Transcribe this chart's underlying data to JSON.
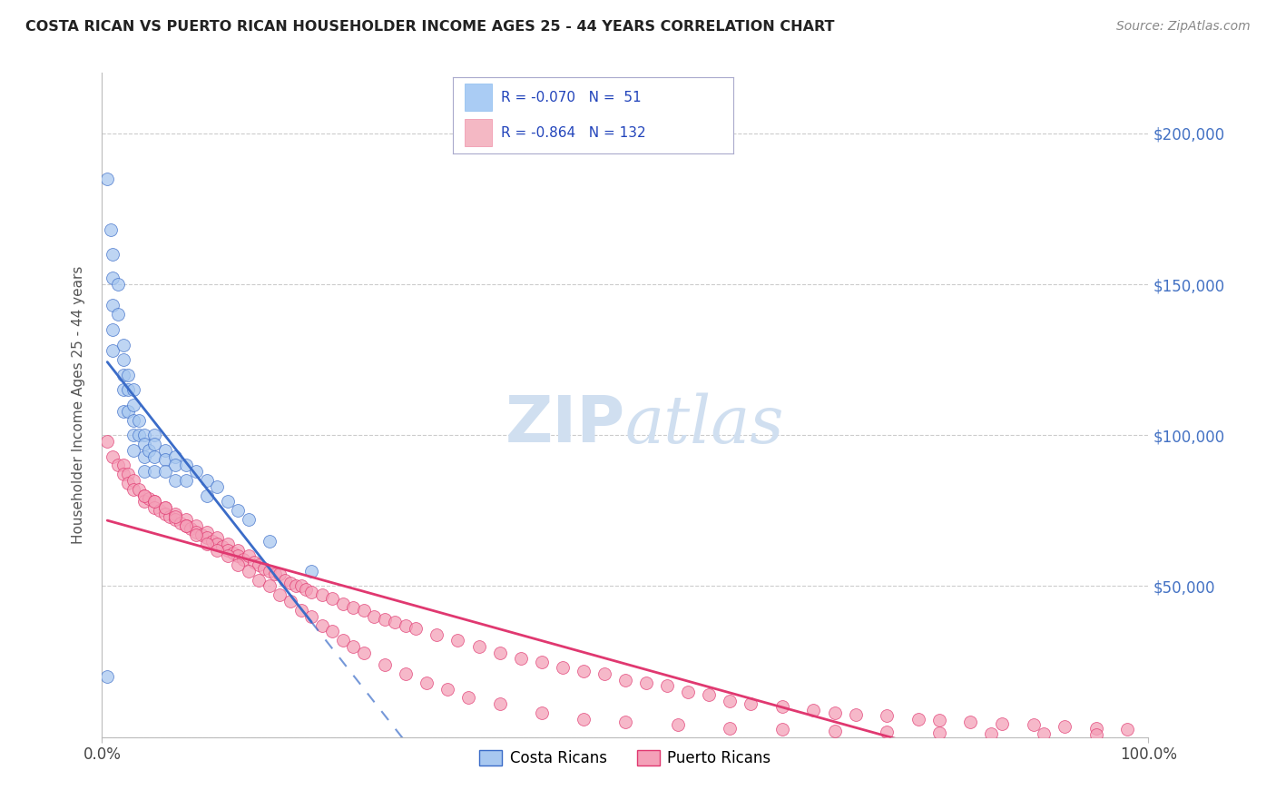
{
  "title": "COSTA RICAN VS PUERTO RICAN HOUSEHOLDER INCOME AGES 25 - 44 YEARS CORRELATION CHART",
  "source": "Source: ZipAtlas.com",
  "ylabel": "Householder Income Ages 25 - 44 years",
  "xmin": 0.0,
  "xmax": 1.0,
  "ymin": 0,
  "ymax": 220000,
  "yticks": [
    0,
    50000,
    100000,
    150000,
    200000
  ],
  "ytick_labels": [
    "",
    "$50,000",
    "$100,000",
    "$150,000",
    "$200,000"
  ],
  "cr_R": -0.07,
  "cr_N": 51,
  "pr_R": -0.864,
  "pr_N": 132,
  "blue_scatter_color": "#A8C8F0",
  "pink_scatter_color": "#F4A0B8",
  "blue_line_color": "#3B6CC8",
  "pink_line_color": "#E03870",
  "axis_label_color": "#4472C4",
  "watermark_color": "#D0DFF0",
  "background_color": "#FFFFFF",
  "grid_color": "#CCCCCC",
  "title_color": "#222222",
  "legend_R_color": "#2244BB",
  "cr_scatter_x": [
    0.005,
    0.008,
    0.01,
    0.01,
    0.01,
    0.01,
    0.01,
    0.015,
    0.015,
    0.02,
    0.02,
    0.02,
    0.02,
    0.02,
    0.025,
    0.025,
    0.025,
    0.03,
    0.03,
    0.03,
    0.03,
    0.03,
    0.035,
    0.035,
    0.04,
    0.04,
    0.04,
    0.04,
    0.045,
    0.05,
    0.05,
    0.05,
    0.05,
    0.06,
    0.06,
    0.06,
    0.07,
    0.07,
    0.07,
    0.08,
    0.08,
    0.09,
    0.1,
    0.1,
    0.11,
    0.12,
    0.13,
    0.14,
    0.16,
    0.2,
    0.005
  ],
  "cr_scatter_y": [
    185000,
    168000,
    160000,
    152000,
    143000,
    135000,
    128000,
    150000,
    140000,
    130000,
    125000,
    120000,
    115000,
    108000,
    120000,
    115000,
    108000,
    115000,
    110000,
    105000,
    100000,
    95000,
    105000,
    100000,
    100000,
    97000,
    93000,
    88000,
    95000,
    100000,
    97000,
    93000,
    88000,
    95000,
    92000,
    88000,
    93000,
    90000,
    85000,
    90000,
    85000,
    88000,
    85000,
    80000,
    83000,
    78000,
    75000,
    72000,
    65000,
    55000,
    20000
  ],
  "pr_scatter_x": [
    0.005,
    0.01,
    0.015,
    0.02,
    0.02,
    0.025,
    0.025,
    0.03,
    0.03,
    0.035,
    0.04,
    0.04,
    0.045,
    0.05,
    0.05,
    0.055,
    0.06,
    0.06,
    0.065,
    0.07,
    0.07,
    0.075,
    0.08,
    0.08,
    0.085,
    0.09,
    0.09,
    0.095,
    0.1,
    0.1,
    0.105,
    0.11,
    0.11,
    0.115,
    0.12,
    0.12,
    0.125,
    0.13,
    0.13,
    0.135,
    0.14,
    0.145,
    0.15,
    0.155,
    0.16,
    0.165,
    0.17,
    0.175,
    0.18,
    0.185,
    0.19,
    0.195,
    0.2,
    0.21,
    0.22,
    0.23,
    0.24,
    0.25,
    0.26,
    0.27,
    0.28,
    0.29,
    0.3,
    0.32,
    0.34,
    0.36,
    0.38,
    0.4,
    0.42,
    0.44,
    0.46,
    0.48,
    0.5,
    0.52,
    0.54,
    0.56,
    0.58,
    0.6,
    0.62,
    0.65,
    0.68,
    0.7,
    0.72,
    0.75,
    0.78,
    0.8,
    0.83,
    0.86,
    0.89,
    0.92,
    0.95,
    0.98,
    0.04,
    0.05,
    0.06,
    0.07,
    0.08,
    0.09,
    0.1,
    0.11,
    0.12,
    0.13,
    0.14,
    0.15,
    0.16,
    0.17,
    0.18,
    0.19,
    0.2,
    0.21,
    0.22,
    0.23,
    0.24,
    0.25,
    0.27,
    0.29,
    0.31,
    0.33,
    0.35,
    0.38,
    0.42,
    0.46,
    0.5,
    0.55,
    0.6,
    0.65,
    0.7,
    0.75,
    0.8,
    0.85,
    0.9,
    0.95
  ],
  "pr_scatter_y": [
    98000,
    93000,
    90000,
    90000,
    87000,
    87000,
    84000,
    85000,
    82000,
    82000,
    80000,
    78000,
    79000,
    78000,
    76000,
    75000,
    76000,
    74000,
    73000,
    74000,
    72000,
    71000,
    72000,
    70000,
    69000,
    70000,
    68000,
    67000,
    68000,
    66000,
    65000,
    66000,
    64000,
    63000,
    64000,
    62000,
    61000,
    62000,
    60000,
    59000,
    60000,
    58000,
    57000,
    56000,
    55000,
    54000,
    54000,
    52000,
    51000,
    50000,
    50000,
    49000,
    48000,
    47000,
    46000,
    44000,
    43000,
    42000,
    40000,
    39000,
    38000,
    37000,
    36000,
    34000,
    32000,
    30000,
    28000,
    26000,
    25000,
    23000,
    22000,
    21000,
    19000,
    18000,
    17000,
    15000,
    14000,
    12000,
    11000,
    10000,
    9000,
    8000,
    7500,
    7000,
    6000,
    5500,
    5000,
    4500,
    4000,
    3500,
    3000,
    2500,
    80000,
    78000,
    76000,
    73000,
    70000,
    67000,
    64000,
    62000,
    60000,
    57000,
    55000,
    52000,
    50000,
    47000,
    45000,
    42000,
    40000,
    37000,
    35000,
    32000,
    30000,
    28000,
    24000,
    21000,
    18000,
    16000,
    13000,
    11000,
    8000,
    6000,
    5000,
    4000,
    3000,
    2500,
    2000,
    1800,
    1500,
    1200,
    1000,
    800
  ]
}
